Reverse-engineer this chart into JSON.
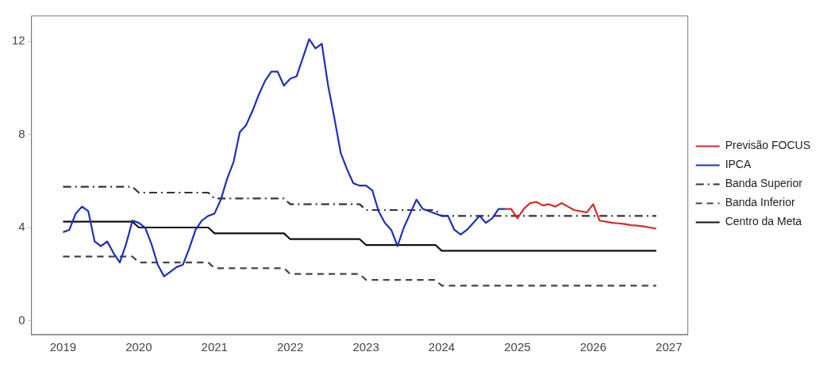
{
  "chart_data": {
    "type": "line",
    "xlim": [
      "2018-08",
      "2027-04"
    ],
    "xticks": [
      "2019",
      "2020",
      "2021",
      "2022",
      "2023",
      "2024",
      "2025",
      "2026",
      "2027"
    ],
    "ylim": [
      -0.6,
      13.1
    ],
    "yticks": [
      0,
      4,
      8,
      12
    ],
    "grid": false,
    "legend": "right",
    "marker": "none",
    "series": [
      {
        "name": "Previsão FOCUS",
        "color": "#d42a2a",
        "line_style": "solid",
        "x": [
          "2024-11",
          "2024-12",
          "2025-01",
          "2025-02",
          "2025-03",
          "2025-04",
          "2025-05",
          "2025-06",
          "2025-07",
          "2025-08",
          "2025-09",
          "2025-10",
          "2025-11",
          "2025-12",
          "2026-01",
          "2026-02",
          "2026-03",
          "2026-04",
          "2026-05",
          "2026-06",
          "2026-07",
          "2026-08",
          "2026-09",
          "2026-10",
          "2026-11"
        ],
        "values": [
          4.8,
          4.8,
          4.4,
          4.8,
          5.05,
          5.1,
          4.95,
          5.0,
          4.9,
          5.05,
          4.9,
          4.75,
          4.7,
          4.65,
          5.0,
          4.3,
          4.25,
          4.2,
          4.18,
          4.15,
          4.1,
          4.08,
          4.05,
          4.0,
          3.95
        ]
      },
      {
        "name": "IPCA",
        "color": "#1f2fb8",
        "line_style": "solid",
        "x": [
          "2019-01",
          "2019-02",
          "2019-03",
          "2019-04",
          "2019-05",
          "2019-06",
          "2019-07",
          "2019-08",
          "2019-09",
          "2019-10",
          "2019-11",
          "2019-12",
          "2020-01",
          "2020-02",
          "2020-03",
          "2020-04",
          "2020-05",
          "2020-06",
          "2020-07",
          "2020-08",
          "2020-09",
          "2020-10",
          "2020-11",
          "2020-12",
          "2021-01",
          "2021-02",
          "2021-03",
          "2021-04",
          "2021-05",
          "2021-06",
          "2021-07",
          "2021-08",
          "2021-09",
          "2021-10",
          "2021-11",
          "2021-12",
          "2022-01",
          "2022-02",
          "2022-03",
          "2022-04",
          "2022-05",
          "2022-06",
          "2022-07",
          "2022-08",
          "2022-09",
          "2022-10",
          "2022-11",
          "2022-12",
          "2023-01",
          "2023-02",
          "2023-03",
          "2023-04",
          "2023-05",
          "2023-06",
          "2023-07",
          "2023-08",
          "2023-09",
          "2023-10",
          "2023-11",
          "2023-12",
          "2024-01",
          "2024-02",
          "2024-03",
          "2024-04",
          "2024-05",
          "2024-06",
          "2024-07",
          "2024-08",
          "2024-09",
          "2024-10",
          "2024-11"
        ],
        "values": [
          3.8,
          3.9,
          4.6,
          4.9,
          4.7,
          3.4,
          3.2,
          3.4,
          2.9,
          2.5,
          3.3,
          4.3,
          4.2,
          4.0,
          3.3,
          2.4,
          1.9,
          2.1,
          2.3,
          2.4,
          3.1,
          3.9,
          4.3,
          4.5,
          4.6,
          5.2,
          6.1,
          6.8,
          8.1,
          8.4,
          9.0,
          9.7,
          10.3,
          10.7,
          10.7,
          10.1,
          10.4,
          10.5,
          11.3,
          12.1,
          11.7,
          11.9,
          10.1,
          8.7,
          7.2,
          6.5,
          5.9,
          5.8,
          5.8,
          5.6,
          4.7,
          4.2,
          3.9,
          3.2,
          4.0,
          4.6,
          5.2,
          4.8,
          4.7,
          4.6,
          4.5,
          4.5,
          3.9,
          3.7,
          3.9,
          4.2,
          4.5,
          4.2,
          4.4,
          4.8,
          4.8
        ]
      },
      {
        "name": "Banda Superior",
        "color": "#333333",
        "line_style": "dotted",
        "x": [
          "2019-01",
          "2019-12",
          "2020-01",
          "2020-12",
          "2021-01",
          "2021-12",
          "2022-01",
          "2022-12",
          "2023-01",
          "2023-12",
          "2024-01",
          "2026-11"
        ],
        "values": [
          5.75,
          5.75,
          5.5,
          5.5,
          5.25,
          5.25,
          5.0,
          5.0,
          4.75,
          4.75,
          4.5,
          4.5
        ]
      },
      {
        "name": "Banda Inferior",
        "color": "#444444",
        "line_style": "dashed",
        "x": [
          "2019-01",
          "2019-12",
          "2020-01",
          "2020-12",
          "2021-01",
          "2021-12",
          "2022-01",
          "2022-12",
          "2023-01",
          "2023-12",
          "2024-01",
          "2026-11"
        ],
        "values": [
          2.75,
          2.75,
          2.5,
          2.5,
          2.25,
          2.25,
          2.0,
          2.0,
          1.75,
          1.75,
          1.5,
          1.5
        ]
      },
      {
        "name": "Centro da Meta",
        "color": "#111111",
        "line_style": "solid",
        "x": [
          "2019-01",
          "2019-12",
          "2020-01",
          "2020-12",
          "2021-01",
          "2021-12",
          "2022-01",
          "2022-12",
          "2023-01",
          "2023-12",
          "2024-01",
          "2026-11"
        ],
        "values": [
          4.25,
          4.25,
          4.0,
          4.0,
          3.75,
          3.75,
          3.5,
          3.5,
          3.25,
          3.25,
          3.0,
          3.0
        ]
      }
    ]
  }
}
